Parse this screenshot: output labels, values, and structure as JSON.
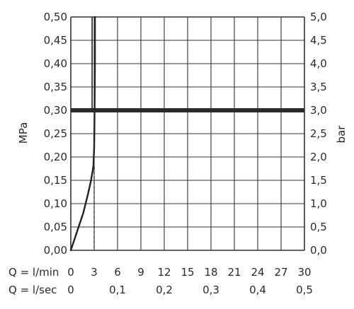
{
  "chart_data": {
    "type": "line",
    "left_axis": {
      "label": "MPa",
      "ylim": [
        0,
        0.5
      ],
      "ticks": [
        "0,00",
        "0,05",
        "0,10",
        "0,15",
        "0,20",
        "0,25",
        "0,30",
        "0,35",
        "0,40",
        "0,45",
        "0,50"
      ]
    },
    "right_axis": {
      "label": "bar",
      "ylim": [
        0,
        5
      ],
      "ticks": [
        "0,0",
        "0,5",
        "1,0",
        "1,5",
        "2,0",
        "2,5",
        "3,0",
        "3,5",
        "4,0",
        "4,5",
        "5,0"
      ]
    },
    "x_axis": {
      "xlim": [
        0,
        30
      ],
      "lmin_label": "Q = l/min",
      "lmin_ticks": [
        {
          "v": 0,
          "t": "0"
        },
        {
          "v": 3,
          "t": "3"
        },
        {
          "v": 6,
          "t": "6"
        },
        {
          "v": 9,
          "t": "9"
        },
        {
          "v": 12,
          "t": "12"
        },
        {
          "v": 15,
          "t": "15"
        },
        {
          "v": 18,
          "t": "18"
        },
        {
          "v": 21,
          "t": "21"
        },
        {
          "v": 24,
          "t": "24"
        },
        {
          "v": 27,
          "t": "27"
        },
        {
          "v": 30,
          "t": "30"
        }
      ],
      "lsec_label": "Q = l/sec",
      "lsec_ticks": [
        {
          "v": 0,
          "t": "0"
        },
        {
          "v": 6,
          "t": "0,1"
        },
        {
          "v": 12,
          "t": "0,2"
        },
        {
          "v": 18,
          "t": "0,3"
        },
        {
          "v": 24,
          "t": "0,4"
        },
        {
          "v": 30,
          "t": "0,5"
        }
      ]
    },
    "grid": true,
    "series": [
      {
        "points": [
          [
            0,
            0
          ],
          [
            0.8,
            0.04
          ],
          [
            1.6,
            0.08
          ],
          [
            2.2,
            0.12
          ],
          [
            2.6,
            0.15
          ],
          [
            2.9,
            0.18
          ],
          [
            3.0,
            0.22
          ],
          [
            3.05,
            0.3
          ],
          [
            3.1,
            0.4
          ],
          [
            3.1,
            0.5
          ]
        ]
      }
    ],
    "reference_line": {
      "y": 0.3
    },
    "marker": {
      "x": 3,
      "y": 0.18
    }
  }
}
